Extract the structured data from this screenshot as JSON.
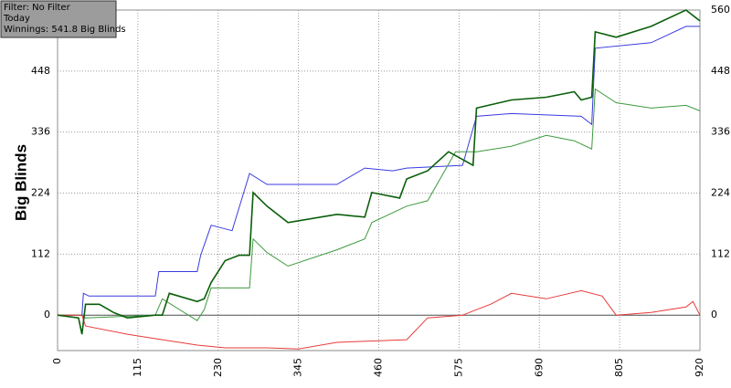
{
  "chart_data": {
    "type": "line",
    "y_label": "Big Blinds",
    "annotations": [
      "Filter: No Filter",
      "Today",
      "Winnings: 541.8 Big Blinds"
    ],
    "xlim": [
      0,
      920
    ],
    "xticks": [
      0,
      115,
      230,
      345,
      460,
      575,
      690,
      805,
      920
    ],
    "ylim": [
      -65,
      560
    ],
    "yticks": [
      0,
      112,
      224,
      336,
      448,
      560
    ],
    "grid": true,
    "series": [
      {
        "color": "#3a3ae0",
        "x": [
          0,
          35,
          37,
          45,
          140,
          145,
          200,
          205,
          220,
          250,
          275,
          300,
          400,
          440,
          480,
          500,
          580,
          600,
          650,
          750,
          765,
          770,
          850,
          900,
          920
        ],
        "values": [
          0,
          0,
          40,
          35,
          35,
          80,
          80,
          110,
          165,
          155,
          260,
          240,
          240,
          270,
          265,
          270,
          275,
          365,
          370,
          365,
          350,
          490,
          500,
          530,
          530
        ]
      },
      {
        "color": "#3e9a3e",
        "x": [
          0,
          35,
          40,
          140,
          150,
          200,
          210,
          220,
          250,
          275,
          280,
          300,
          330,
          400,
          440,
          450,
          500,
          530,
          570,
          600,
          650,
          700,
          740,
          765,
          770,
          800,
          850,
          900,
          920
        ],
        "values": [
          0,
          0,
          -5,
          0,
          30,
          -10,
          10,
          50,
          50,
          50,
          140,
          115,
          90,
          120,
          140,
          170,
          200,
          210,
          300,
          300,
          310,
          330,
          320,
          305,
          415,
          390,
          380,
          385,
          375
        ]
      },
      {
        "color": "#e83a3a",
        "x": [
          0,
          35,
          40,
          100,
          150,
          200,
          240,
          300,
          345,
          400,
          500,
          530,
          580,
          600,
          620,
          650,
          700,
          750,
          780,
          800,
          850,
          900,
          910,
          920
        ],
        "values": [
          0,
          0,
          -20,
          -35,
          -45,
          -55,
          -60,
          -60,
          -62,
          -50,
          -45,
          -5,
          0,
          10,
          20,
          40,
          30,
          45,
          35,
          0,
          5,
          15,
          25,
          0
        ]
      },
      {
        "color": "#0a5e0a",
        "x": [
          0,
          30,
          35,
          40,
          60,
          80,
          100,
          140,
          150,
          160,
          200,
          210,
          220,
          240,
          260,
          275,
          280,
          300,
          330,
          400,
          440,
          450,
          490,
          500,
          530,
          560,
          595,
          600,
          650,
          700,
          740,
          750,
          765,
          770,
          800,
          850,
          900,
          920
        ],
        "values": [
          0,
          -5,
          -35,
          20,
          20,
          5,
          -5,
          0,
          0,
          40,
          25,
          30,
          60,
          100,
          110,
          110,
          225,
          200,
          170,
          185,
          180,
          225,
          215,
          250,
          265,
          300,
          275,
          380,
          395,
          400,
          410,
          395,
          400,
          520,
          510,
          530,
          560,
          540
        ]
      }
    ]
  }
}
